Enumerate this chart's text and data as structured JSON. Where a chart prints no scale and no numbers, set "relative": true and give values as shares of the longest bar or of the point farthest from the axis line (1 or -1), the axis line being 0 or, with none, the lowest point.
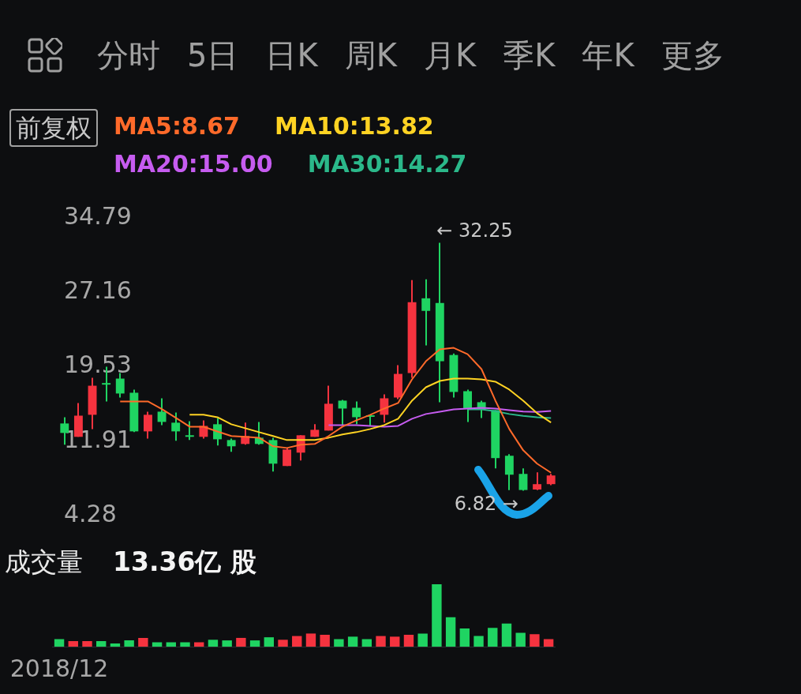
{
  "chart_data": [
    {
      "type": "candlestick",
      "annotations": [
        "分时",
        "5日",
        "日K",
        "周K",
        "月K",
        "季K",
        "年K",
        "更多",
        "← 32.25",
        "6.82 →"
      ],
      "legend_title": "前复权",
      "legend": "top",
      "categories": [
        null,
        null,
        null,
        null,
        null,
        null,
        null,
        null,
        null,
        null,
        null,
        null,
        null,
        null,
        null,
        null,
        null,
        null,
        null,
        null,
        null,
        null,
        null,
        null,
        null,
        null,
        null,
        null,
        null,
        null,
        null,
        null,
        null,
        null,
        null,
        null
      ],
      "ohlc": [
        [
          13.72,
          14.36,
          11.54,
          12.75
        ],
        [
          12.35,
          15.82,
          12.35,
          14.52
        ],
        [
          14.61,
          18.4,
          13.15,
          17.59
        ],
        [
          17.8,
          19.53,
          15.98,
          17.7
        ],
        [
          18.32,
          18.88,
          16.38,
          16.79
        ],
        [
          16.87,
          17.19,
          12.83,
          12.91
        ],
        [
          12.91,
          14.93,
          12.18,
          14.61
        ],
        [
          14.93,
          16.3,
          13.55,
          13.88
        ],
        [
          13.8,
          14.85,
          11.94,
          12.91
        ],
        [
          12.5,
          13.96,
          12.02,
          12.35
        ],
        [
          12.35,
          14.04,
          12.18,
          13.47
        ],
        [
          13.64,
          14.28,
          11.46,
          12.1
        ],
        [
          12.02,
          12.18,
          10.81,
          11.38
        ],
        [
          11.62,
          13.8,
          11.54,
          12.43
        ],
        [
          12.26,
          13.88,
          11.54,
          11.62
        ],
        [
          12.02,
          12.26,
          8.79,
          9.6
        ],
        [
          9.36,
          11.21,
          9.36,
          11.05
        ],
        [
          10.73,
          12.51,
          9.92,
          12.51
        ],
        [
          12.35,
          13.64,
          12.35,
          13.07
        ],
        [
          12.99,
          17.59,
          12.99,
          15.74
        ],
        [
          16.06,
          16.14,
          13.55,
          15.25
        ],
        [
          15.33,
          15.98,
          13.64,
          14.36
        ],
        [
          14.5,
          14.61,
          13.47,
          14.4
        ],
        [
          14.61,
          16.7,
          13.8,
          16.3
        ],
        [
          16.38,
          19.69,
          16.22,
          18.8
        ],
        [
          18.88,
          28.41,
          18.4,
          26.15
        ],
        [
          26.55,
          28.49,
          21.71,
          25.26
        ],
        [
          26.07,
          32.25,
          15.9,
          20.1
        ],
        [
          20.74,
          20.9,
          16.38,
          16.95
        ],
        [
          17.03,
          17.19,
          13.88,
          15.25
        ],
        [
          15.9,
          16.06,
          14.28,
          15.17
        ],
        [
          15.09,
          15.09,
          9.12,
          10.17
        ],
        [
          10.41,
          10.57,
          6.9,
          8.47
        ],
        [
          8.55,
          9.12,
          6.82,
          6.9
        ],
        [
          6.95,
          8.71,
          6.9,
          7.5
        ],
        [
          7.5,
          8.55,
          7.4,
          8.39
        ]
      ],
      "colors": [
        "#1fd462",
        "#f5333f",
        "#f5333f",
        "#1fd462",
        "#1fd462",
        "#1fd462",
        "#f5333f",
        "#1fd462",
        "#1fd462",
        "#1fd462",
        "#f5333f",
        "#1fd462",
        "#1fd462",
        "#f5333f",
        "#1fd462",
        "#1fd462",
        "#f5333f",
        "#f5333f",
        "#f5333f",
        "#f5333f",
        "#1fd462",
        "#1fd462",
        "#1fd462",
        "#f5333f",
        "#f5333f",
        "#f5333f",
        "#1fd462",
        "#1fd462",
        "#1fd462",
        "#1fd462",
        "#1fd462",
        "#1fd462",
        "#1fd462",
        "#1fd462",
        "#f5333f",
        "#f5333f"
      ],
      "series": [
        {
          "type": "line",
          "name": "MA5:8.67",
          "color": "#ff6a2a",
          "values": [
            null,
            null,
            null,
            null,
            15.98,
            15.98,
            15.98,
            15.2,
            14.3,
            13.39,
            13.39,
            12.9,
            12.43,
            12.35,
            12.26,
            11.38,
            11.21,
            11.54,
            11.62,
            12.43,
            13.39,
            14.04,
            14.61,
            15.25,
            15.82,
            18.24,
            20.1,
            21.31,
            21.47,
            20.82,
            19.29,
            16.06,
            13.15,
            10.97,
            9.6,
            8.67
          ]
        },
        {
          "type": "line",
          "name": "MA10:13.82",
          "color": "#ffd323",
          "values": [
            null,
            null,
            null,
            null,
            null,
            null,
            null,
            null,
            null,
            14.61,
            14.61,
            14.36,
            13.64,
            13.23,
            12.83,
            12.43,
            12.02,
            12.02,
            12.02,
            12.26,
            12.59,
            12.83,
            13.15,
            13.55,
            14.2,
            16.06,
            17.43,
            18.08,
            18.32,
            18.32,
            18.24,
            18.0,
            17.19,
            16.06,
            14.77,
            13.82
          ]
        },
        {
          "type": "line",
          "name": "MA20:15.00",
          "color": "#c65cf0",
          "values": [
            null,
            null,
            null,
            null,
            null,
            null,
            null,
            null,
            null,
            null,
            null,
            null,
            null,
            null,
            null,
            null,
            null,
            null,
            null,
            13.55,
            13.55,
            13.55,
            13.47,
            13.39,
            13.47,
            14.2,
            14.69,
            14.93,
            15.17,
            15.25,
            15.33,
            15.25,
            15.09,
            14.95,
            14.9,
            15.0
          ]
        },
        {
          "type": "line",
          "name": "MA30:14.27",
          "color": "#2bb88a",
          "values": [
            null,
            null,
            null,
            null,
            null,
            null,
            null,
            null,
            null,
            null,
            null,
            null,
            null,
            null,
            null,
            null,
            null,
            null,
            null,
            null,
            null,
            null,
            null,
            null,
            null,
            null,
            null,
            null,
            null,
            15.17,
            15.17,
            14.99,
            14.69,
            14.5,
            14.35,
            14.27
          ]
        }
      ],
      "ylim": [
        4.28,
        34.79
      ],
      "yticks": [
        34.79,
        27.16,
        19.53,
        11.91,
        4.28
      ],
      "marker": "none",
      "tick_labels": "y"
    },
    {
      "type": "bar",
      "title": "成交量",
      "subtitle": "13.36亿 股",
      "relative": true,
      "tick_labels": "x",
      "categories": [
        "2018/12",
        null,
        null,
        null,
        null,
        null,
        null,
        null,
        null,
        null,
        null,
        null,
        null,
        null,
        null,
        null,
        null,
        null,
        null,
        null,
        null,
        null,
        null,
        null,
        null,
        null,
        null,
        null,
        null,
        null,
        null,
        null,
        null,
        null,
        null,
        null
      ],
      "values": [
        0.12,
        0.09,
        0.09,
        0.09,
        0.05,
        0.1,
        0.14,
        0.07,
        0.07,
        0.07,
        0.07,
        0.11,
        0.1,
        0.14,
        0.1,
        0.15,
        0.11,
        0.17,
        0.21,
        0.19,
        0.12,
        0.16,
        0.12,
        0.17,
        0.16,
        0.19,
        0.21,
        1,
        0.47,
        0.29,
        0.17,
        0.3,
        0.37,
        0.22,
        0.2,
        0.12
      ],
      "colors": [
        "#1fd462",
        "#f5333f",
        "#f5333f",
        "#1fd462",
        "#1fd462",
        "#1fd462",
        "#f5333f",
        "#1fd462",
        "#1fd462",
        "#1fd462",
        "#f5333f",
        "#1fd462",
        "#1fd462",
        "#f5333f",
        "#1fd462",
        "#1fd462",
        "#f5333f",
        "#f5333f",
        "#f5333f",
        "#f5333f",
        "#1fd462",
        "#1fd462",
        "#1fd462",
        "#f5333f",
        "#f5333f",
        "#f5333f",
        "#1fd462",
        "#1fd462",
        "#1fd462",
        "#1fd462",
        "#1fd462",
        "#1fd462",
        "#1fd462",
        "#1fd462",
        "#f5333f",
        "#f5333f"
      ]
    }
  ]
}
